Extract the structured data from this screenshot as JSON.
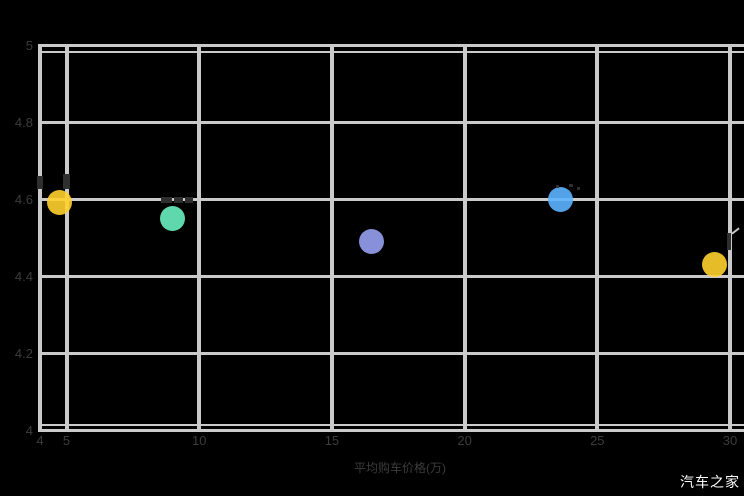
{
  "watermark": "汽车之家",
  "colors": {
    "background": "#000000",
    "gridline": "#cacaca",
    "tick_label": "#3c3c3c",
    "watermark_text": "#ffffff"
  },
  "chart_data": {
    "type": "scatter",
    "title": "",
    "xlabel": "平均购车价格(万)",
    "ylabel": "",
    "xlim": [
      4,
      30
    ],
    "ylim": [
      4,
      5
    ],
    "x_ticks": [
      "4",
      "5",
      "10",
      "15",
      "20",
      "25",
      "30"
    ],
    "x_tick_values": [
      4,
      5,
      10,
      15,
      20,
      25,
      30
    ],
    "y_ticks": [
      "4",
      "4.2",
      "4.4",
      "4.6",
      "4.8",
      "5"
    ],
    "y_tick_values": [
      4,
      4.2,
      4.4,
      4.6,
      4.8,
      5
    ],
    "grid": true,
    "legend": false,
    "series": [
      {
        "name": "bubble-1",
        "x": 4.75,
        "y": 4.59,
        "color": "#ffd02e"
      },
      {
        "name": "bubble-2",
        "x": 9.0,
        "y": 4.55,
        "color": "#6af0c0"
      },
      {
        "name": "bubble-3",
        "x": 16.5,
        "y": 4.49,
        "color": "#96a0f0"
      },
      {
        "name": "bubble-4",
        "x": 23.6,
        "y": 4.6,
        "color": "#5cb2ff"
      },
      {
        "name": "bubble-5",
        "x": 29.4,
        "y": 4.43,
        "color": "#ffd02e"
      }
    ]
  }
}
